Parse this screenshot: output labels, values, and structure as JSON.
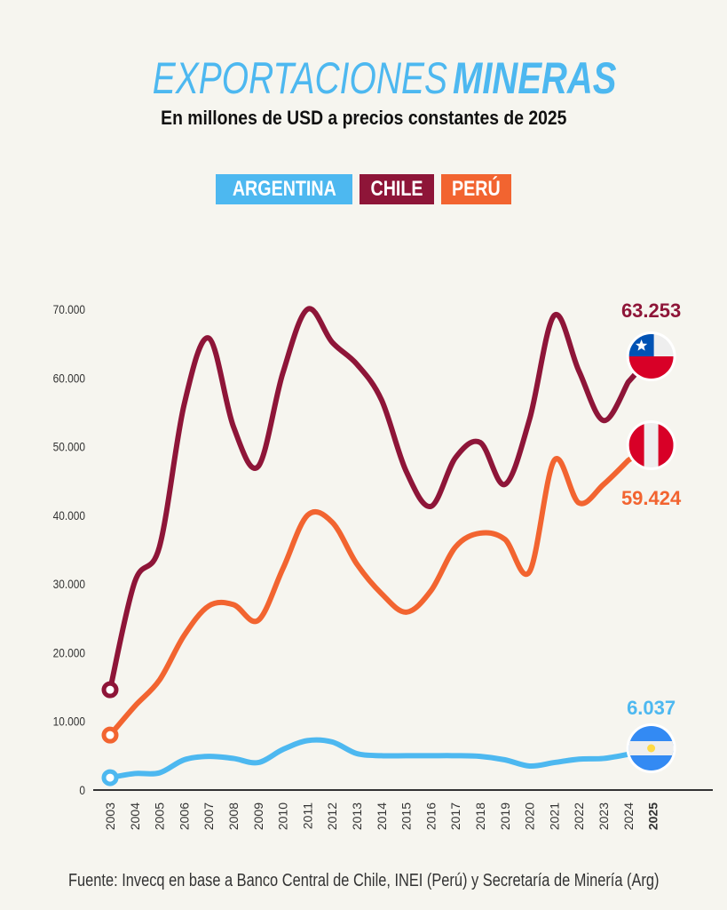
{
  "header": {
    "title_light": "EXPORTACIONES",
    "title_bold": "MINERAS",
    "subtitle": "En millones de USD a precios constantes de 2025"
  },
  "legend": [
    {
      "label": "ARGENTINA",
      "color": "#4db8f0"
    },
    {
      "label": "CHILE",
      "color": "#8e1538"
    },
    {
      "label": "PERÚ",
      "color": "#f26430"
    }
  ],
  "source": "Fuente: Invecq en base a Banco Central de Chile, INEI (Perú) y Secretaría de Minería (Arg)",
  "chart_data": {
    "type": "line",
    "title": "EXPORTACIONES MINERAS",
    "subtitle": "En millones de USD a precios constantes de 2025",
    "xlabel": "",
    "ylabel": "",
    "x": [
      "2003",
      "2004",
      "2005",
      "2006",
      "2007",
      "2008",
      "2009",
      "2010",
      "2011",
      "2012",
      "2013",
      "2014",
      "2015",
      "2016",
      "2017",
      "2018",
      "2019",
      "2020",
      "2021",
      "2022",
      "2023",
      "2024",
      "2025"
    ],
    "x_bold": [
      "2025"
    ],
    "ylim": [
      0,
      70000
    ],
    "yticks": [
      0,
      10000,
      20000,
      30000,
      40000,
      50000,
      60000,
      70000
    ],
    "ytick_labels": [
      "0",
      "10.000",
      "20.000",
      "30.000",
      "40.000",
      "50.000",
      "60.000",
      "70.000"
    ],
    "grid": false,
    "legend_position": "top-center",
    "series": [
      {
        "name": "CHILE",
        "color": "#8e1538",
        "values": [
          14600,
          30300,
          35400,
          56100,
          65800,
          52900,
          47100,
          60700,
          70000,
          65200,
          62000,
          56800,
          46400,
          41300,
          48400,
          50600,
          44500,
          54000,
          69100,
          61000,
          53800,
          59400,
          63253
        ],
        "end_label": "63.253",
        "flag": "chile-flag"
      },
      {
        "name": "PERÚ",
        "color": "#f26430",
        "values": [
          8000,
          12200,
          16000,
          22500,
          26800,
          27000,
          24700,
          32200,
          40000,
          39000,
          32900,
          28600,
          25900,
          29000,
          35400,
          37400,
          36500,
          31800,
          48000,
          41800,
          44500,
          48000,
          59424
        ],
        "end_label": "59.424",
        "flag": "peru-flag"
      },
      {
        "name": "ARGENTINA",
        "color": "#4db8f0",
        "values": [
          1800,
          2400,
          2500,
          4400,
          4900,
          4600,
          4000,
          5900,
          7200,
          7000,
          5300,
          5000,
          5000,
          5000,
          5000,
          4900,
          4400,
          3500,
          4000,
          4500,
          4600,
          5200,
          6037
        ],
        "end_label": "6.037",
        "flag": "argentina-flag"
      }
    ]
  }
}
